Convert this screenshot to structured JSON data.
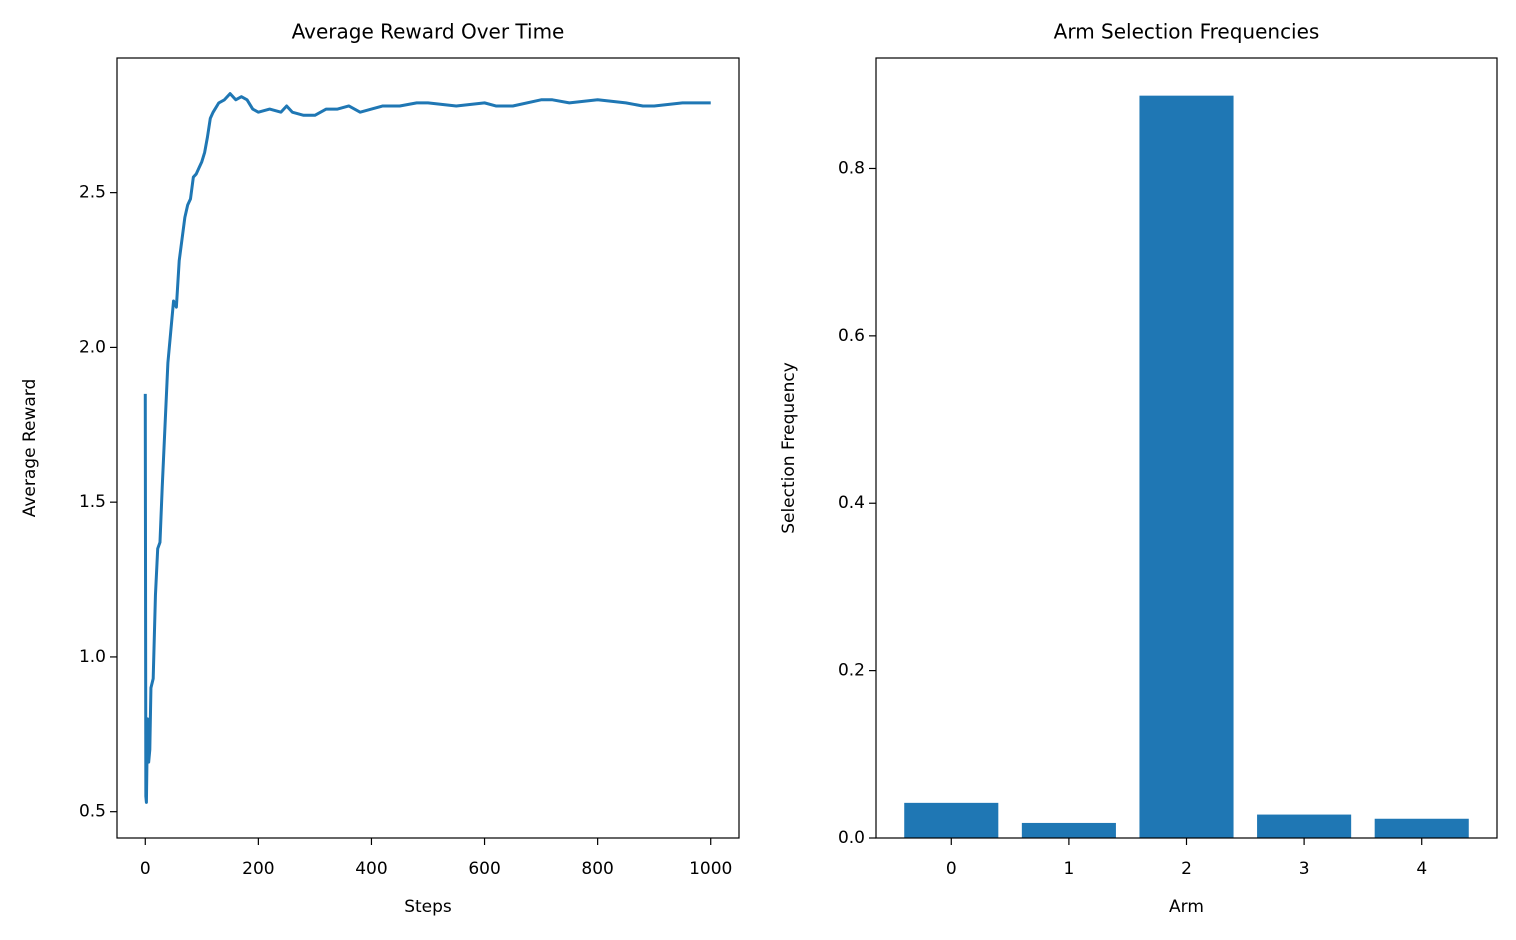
{
  "chart_data": [
    {
      "type": "line",
      "title": "Average Reward Over Time",
      "x_label": "Steps",
      "y_label": "Average Reward",
      "x": [
        0,
        1,
        2,
        4,
        6,
        8,
        10,
        14,
        18,
        22,
        26,
        30,
        35,
        40,
        45,
        50,
        55,
        60,
        65,
        70,
        75,
        80,
        85,
        90,
        95,
        100,
        105,
        110,
        115,
        120,
        130,
        140,
        150,
        160,
        170,
        180,
        190,
        200,
        220,
        240,
        250,
        260,
        280,
        300,
        320,
        340,
        360,
        380,
        400,
        420,
        450,
        480,
        500,
        550,
        600,
        620,
        650,
        700,
        720,
        750,
        800,
        850,
        880,
        900,
        950,
        1000
      ],
      "series": [
        {
          "color": "#1f77b4",
          "values": [
            1.85,
            0.55,
            0.53,
            0.8,
            0.66,
            0.7,
            0.9,
            0.93,
            1.2,
            1.35,
            1.37,
            1.55,
            1.75,
            1.95,
            2.05,
            2.15,
            2.13,
            2.28,
            2.35,
            2.42,
            2.46,
            2.48,
            2.55,
            2.56,
            2.58,
            2.6,
            2.63,
            2.68,
            2.74,
            2.76,
            2.79,
            2.8,
            2.82,
            2.8,
            2.81,
            2.8,
            2.77,
            2.76,
            2.77,
            2.76,
            2.78,
            2.76,
            2.75,
            2.75,
            2.77,
            2.77,
            2.78,
            2.76,
            2.77,
            2.78,
            2.78,
            2.79,
            2.79,
            2.78,
            2.79,
            2.78,
            2.78,
            2.8,
            2.8,
            2.79,
            2.8,
            2.79,
            2.78,
            2.78,
            2.79,
            2.79
          ]
        }
      ],
      "xlim": [
        -50,
        1050
      ],
      "xticks": [
        0,
        200,
        400,
        600,
        800,
        1000
      ],
      "ylim": [
        0.415,
        2.935
      ],
      "yticks": [
        0.5,
        {
          "value": 1,
          "label": "1.0"
        },
        1.5,
        {
          "value": 2,
          "label": "2.0"
        },
        2.5
      ]
    },
    {
      "type": "bar",
      "title": "Arm Selection Frequencies",
      "x_label": "Arm",
      "y_label": "Selection Frequency",
      "categories": [
        "0",
        "1",
        "2",
        "3",
        "4"
      ],
      "values": [
        0.042,
        0.018,
        0.887,
        0.028,
        0.023
      ],
      "color": "#1f77b4",
      "ylim": [
        0,
        0.932
      ],
      "yticks": [
        {
          "value": 0,
          "label": "0.0"
        },
        0.2,
        0.4,
        0.6,
        0.8
      ]
    }
  ]
}
